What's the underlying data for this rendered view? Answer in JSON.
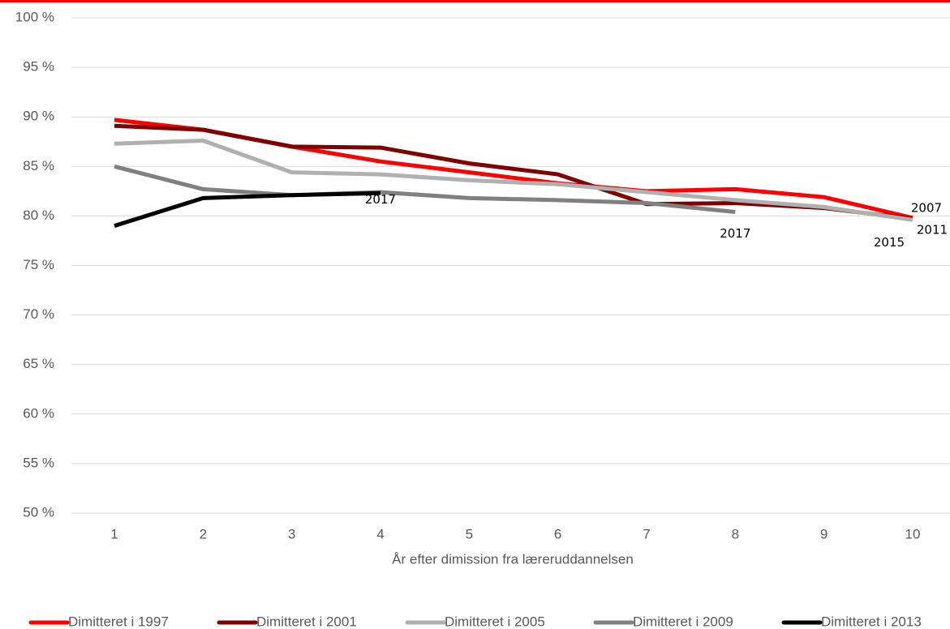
{
  "chart_data": {
    "type": "line",
    "x_label": "År efter dimission fra læreruddannelsen",
    "categories": [
      1,
      2,
      3,
      4,
      5,
      6,
      7,
      8,
      9,
      10
    ],
    "series": [
      {
        "name": "Dimitteret i 1997",
        "color": "#ff0000",
        "values": [
          89.7,
          88.7,
          87.0,
          85.5,
          84.4,
          83.3,
          82.5,
          82.7,
          81.9,
          79.8
        ]
      },
      {
        "name": "Dimitteret i 2001",
        "color": "#7f0000",
        "values": [
          89.1,
          88.7,
          87.0,
          86.9,
          85.3,
          84.2,
          81.2,
          81.3,
          80.8,
          79.7
        ]
      },
      {
        "name": "Dimitteret i 2005",
        "color": "#b0b0b0",
        "values": [
          87.3,
          87.6,
          84.4,
          84.2,
          83.6,
          83.2,
          82.4,
          81.6,
          80.9,
          79.6
        ]
      },
      {
        "name": "Dimitteret i 2009",
        "color": "#808080",
        "values": [
          85.0,
          82.7,
          82.1,
          82.4,
          81.8,
          81.6,
          81.3,
          80.4,
          null,
          null
        ]
      },
      {
        "name": "Dimitteret i 2013",
        "color": "#000000",
        "values": [
          79.0,
          81.8,
          82.1,
          82.3,
          null,
          null,
          null,
          null,
          null,
          null
        ]
      }
    ],
    "annotations": [
      {
        "text": "2017",
        "x": 4,
        "y": 82.3
      },
      {
        "text": "2017",
        "x": 8,
        "y": 80.4
      },
      {
        "text": "2007",
        "x": 10,
        "y": 79.8
      },
      {
        "text": "2011",
        "x": 10,
        "y": 79.7
      },
      {
        "text": "2015",
        "x": 10,
        "y": 79.6
      }
    ],
    "ylim": [
      50,
      100
    ],
    "yticks": [
      {
        "value": 50,
        "label": "50 %"
      },
      {
        "value": 55,
        "label": "55 %"
      },
      {
        "value": 60,
        "label": "60 %"
      },
      {
        "value": 65,
        "label": "65 %"
      },
      {
        "value": 70,
        "label": "70 %"
      },
      {
        "value": 75,
        "label": "75 %"
      },
      {
        "value": 80,
        "label": "80 %"
      },
      {
        "value": 85,
        "label": "85 %"
      },
      {
        "value": 90,
        "label": "90 %"
      },
      {
        "value": 95,
        "label": "95 %"
      },
      {
        "value": 100,
        "label": "100 %"
      }
    ],
    "grid": true,
    "legend": "bottom"
  }
}
